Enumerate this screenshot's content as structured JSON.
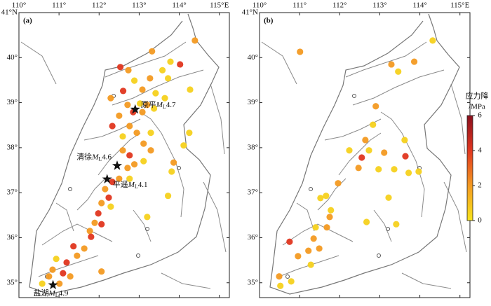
{
  "chart_data": [
    {
      "type": "scatter",
      "label": "(a)",
      "xlim": [
        110,
        115.25
      ],
      "ylim": [
        34.67,
        41
      ],
      "xticks": [
        {
          "value": 110,
          "label": "110°"
        },
        {
          "value": 111,
          "label": "111°"
        },
        {
          "value": 112,
          "label": "112°"
        },
        {
          "value": 113,
          "label": "113°"
        },
        {
          "value": 114,
          "label": "114°"
        },
        {
          "value": 115,
          "label": "115°E"
        }
      ],
      "yticks": [
        {
          "value": 35,
          "label": "35°"
        },
        {
          "value": 36,
          "label": "36°"
        },
        {
          "value": 37,
          "label": "37°"
        },
        {
          "value": 38,
          "label": "38°"
        },
        {
          "value": 39,
          "label": "39°"
        },
        {
          "value": 40,
          "label": "40°"
        },
        {
          "value": 41,
          "label": "41°N"
        }
      ],
      "x": [
        114.39,
        113.32,
        113.78,
        114.02,
        113.58,
        112.53,
        112.73,
        113.72,
        113.27,
        114.27,
        112.88,
        112.6,
        113.08,
        113.41,
        112.29,
        113.64,
        112.71,
        113.02,
        113.2,
        112.85,
        112.5,
        113.08,
        113.37,
        112.33,
        112.76,
        112.94,
        112.59,
        113.29,
        113.11,
        112.59,
        112.76,
        113.29,
        112.88,
        113.11,
        112.71,
        112.5,
        112.33,
        112.15,
        112.76,
        112.24,
        112.06,
        112.29,
        111.98,
        111.89,
        112.06,
        111.77,
        111.8,
        111.63,
        111.36,
        111.45,
        111.19,
        110.93,
        110.84,
        111.1,
        110.75,
        111.28,
        110.58,
        111.01,
        112.06,
        113.81,
        113.86,
        113.72,
        114.11,
        113.2,
        114.25
      ],
      "y": [
        40.38,
        40.14,
        39.91,
        39.85,
        39.72,
        39.79,
        39.72,
        39.54,
        39.54,
        39.29,
        39.49,
        39.26,
        39.29,
        39.21,
        39.1,
        39.1,
        38.95,
        38.98,
        38.95,
        38.79,
        38.71,
        38.79,
        38.87,
        38.48,
        38.48,
        38.33,
        38.25,
        38.33,
        38.09,
        37.94,
        37.83,
        37.94,
        37.63,
        37.7,
        37.55,
        37.31,
        37.24,
        37.08,
        37.31,
        36.89,
        36.77,
        36.69,
        36.54,
        36.33,
        36.3,
        36.15,
        36.02,
        35.76,
        35.81,
        35.6,
        35.45,
        35.53,
        35.29,
        35.21,
        35.14,
        35.14,
        34.98,
        34.98,
        35.25,
        37.47,
        37.67,
        36.93,
        38.05,
        36.46,
        38.33
      ],
      "values": [
        2,
        2,
        0.5,
        4,
        0.5,
        4,
        2,
        0.5,
        2,
        0.5,
        0.5,
        4,
        2,
        0.5,
        2,
        0.5,
        2,
        0.5,
        2,
        4,
        2,
        2,
        0.5,
        4,
        2,
        2,
        0.5,
        0.5,
        2,
        2,
        4,
        2,
        2,
        0.5,
        2,
        2,
        4,
        2,
        0.5,
        4,
        2,
        0.5,
        4,
        2,
        4,
        2,
        4,
        2,
        4,
        2,
        4,
        0.5,
        2,
        4,
        2,
        2,
        0.5,
        2,
        2,
        0.5,
        2,
        0.5,
        0.5,
        0.5,
        0.5
      ],
      "annotations": [
        {
          "name": "原平",
          "symbol": "M",
          "subscript": "L",
          "magnitude": "4.7",
          "lon": 112.9,
          "lat": 38.85
        },
        {
          "name": "清徐",
          "symbol": "M",
          "subscript": "L",
          "magnitude": "4.6",
          "lon": 112.45,
          "lat": 37.6
        },
        {
          "name": "平遥",
          "symbol": "M",
          "subscript": "L",
          "magnitude": "4.1",
          "lon": 112.2,
          "lat": 37.3
        },
        {
          "name": "盐湖",
          "symbol": "M",
          "subscript": "L",
          "magnitude": "4.9",
          "lon": 110.85,
          "lat": 34.95
        }
      ]
    },
    {
      "type": "scatter",
      "label": "(b)",
      "xlim": [
        110,
        115.25
      ],
      "ylim": [
        34.67,
        41
      ],
      "xticks": [
        {
          "value": 110,
          "label": "110°"
        },
        {
          "value": 111,
          "label": "111°"
        },
        {
          "value": 112,
          "label": "112°"
        },
        {
          "value": 113,
          "label": "113°"
        },
        {
          "value": 114,
          "label": "114°"
        },
        {
          "value": 115,
          "label": "115°E"
        }
      ],
      "yticks": [
        {
          "value": 35,
          "label": "35°"
        },
        {
          "value": 36,
          "label": "36°"
        },
        {
          "value": 37,
          "label": "37°"
        },
        {
          "value": 38,
          "label": "38°"
        },
        {
          "value": 39,
          "label": "39°"
        },
        {
          "value": 40,
          "label": "40°"
        },
        {
          "value": 41,
          "label": "41°N"
        }
      ],
      "x": [
        114.32,
        111.01,
        113.86,
        113.46,
        113.29,
        112.9,
        112.83,
        112.64,
        112.73,
        113.11,
        112.24,
        112.55,
        112.47,
        112.97,
        113.36,
        113.64,
        113.72,
        113.97,
        111.96,
        111.66,
        111.78,
        111.75,
        111.68,
        111.4,
        111.35,
        111.49,
        111.22,
        110.75,
        110.96,
        111.28,
        110.49,
        110.79,
        110.52,
        113.41,
        113.22,
        112.67,
        111.52,
        113.62
      ],
      "y": [
        40.38,
        40.13,
        39.91,
        39.69,
        39.85,
        38.92,
        38.51,
        38.17,
        37.94,
        37.89,
        37.94,
        37.78,
        37.55,
        37.52,
        37.52,
        37.81,
        37.44,
        37.47,
        37.21,
        36.93,
        36.61,
        36.46,
        36.23,
        36.23,
        35.98,
        35.76,
        35.71,
        35.91,
        35.59,
        35.4,
        35.14,
        35.03,
        34.93,
        36.3,
        36.89,
        36.35,
        36.88,
        38.17
      ],
      "values": [
        0.5,
        2,
        2,
        0.5,
        2,
        2,
        0.5,
        2,
        0.5,
        2,
        0.5,
        4,
        2,
        0.5,
        0.5,
        4,
        0.5,
        0.5,
        2,
        0.5,
        0.5,
        2,
        2,
        0.5,
        2,
        2,
        2,
        4,
        2,
        0.5,
        2,
        0.5,
        0.5,
        0.5,
        0.5,
        0.5,
        0.5,
        0.5
      ]
    }
  ],
  "colorbar": {
    "title": "应力降",
    "unit": "/MPa",
    "lim": [
      0,
      6
    ],
    "ticks": [
      0,
      2,
      4,
      6
    ],
    "colors": [
      "#f7e31b",
      "#f39a22",
      "#e0361f",
      "#8a0f1d"
    ]
  }
}
